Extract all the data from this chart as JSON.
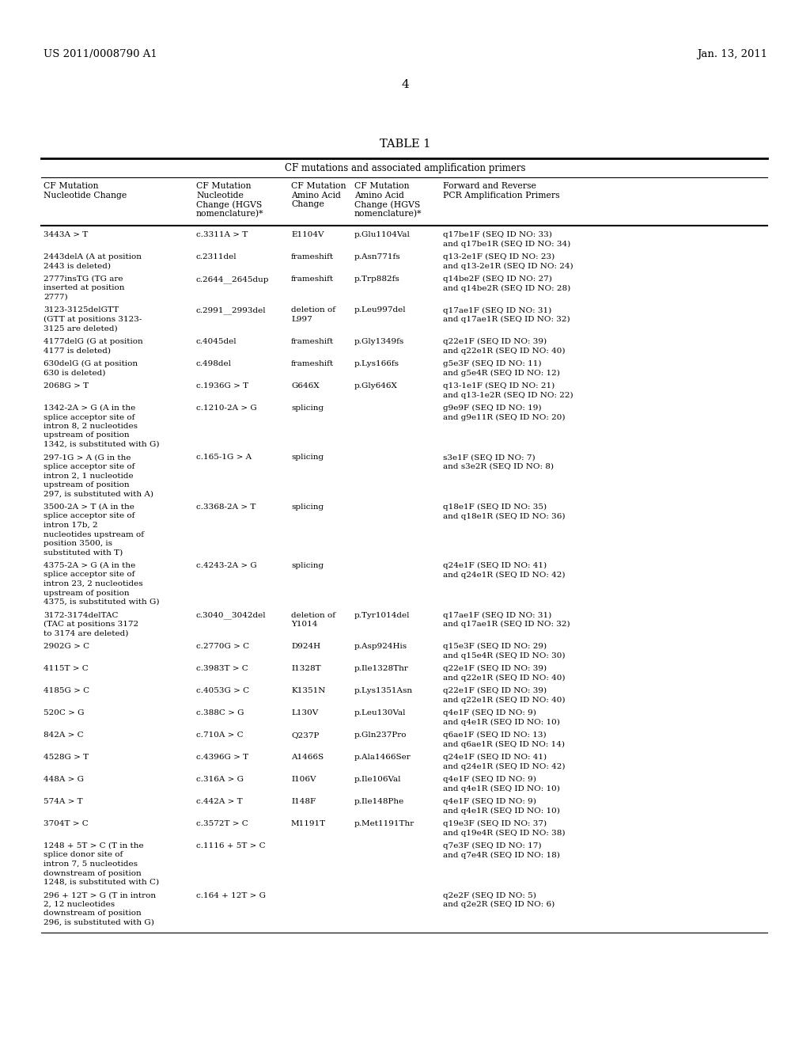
{
  "header_left": "US 2011/0008790 A1",
  "header_right": "Jan. 13, 2011",
  "page_number": "4",
  "table_title": "TABLE 1",
  "table_subtitle": "CF mutations and associated amplification primers",
  "col_headers": [
    [
      "CF Mutation\nNucleotide Change",
      "CF Mutation\nNucleotide\nChange (HGVS\nnomenclature)*",
      "CF Mutation\nAmino Acid\nChange",
      "CF Mutation\nAmino Acid\nChange (HGVS\nnomenclature)*",
      "Forward and Reverse\nPCR Amplification Primers"
    ]
  ],
  "rows": [
    [
      "3443A > T",
      "c.3311A > T",
      "E1104V",
      "p.Glu1104Val",
      "q17be1F (SEQ ID NO: 33)\nand q17be1R (SEQ ID NO: 34)"
    ],
    [
      "2443delA (A at position\n2443 is deleted)",
      "c.2311del",
      "frameshift",
      "p.Asn771fs",
      "q13-2e1F (SEQ ID NO: 23)\nand q13-2e1R (SEQ ID NO: 24)"
    ],
    [
      "2777insTG (TG are\ninserted at position\n2777)",
      "c.2644__2645dup",
      "frameshift",
      "p.Trp882fs",
      "q14be2F (SEQ ID NO: 27)\nand q14be2R (SEQ ID NO: 28)"
    ],
    [
      "3123-3125delGTT\n(GTT at positions 3123-\n3125 are deleted)",
      "c.2991__2993del",
      "deletion of\nL997",
      "p.Leu997del",
      "q17ae1F (SEQ ID NO: 31)\nand q17ae1R (SEQ ID NO: 32)"
    ],
    [
      "4177delG (G at position\n4177 is deleted)",
      "c.4045del",
      "frameshift",
      "p.Gly1349fs",
      "q22e1F (SEQ ID NO: 39)\nand q22e1R (SEQ ID NO: 40)"
    ],
    [
      "630delG (G at position\n630 is deleted)",
      "c.498del",
      "frameshift",
      "p.Lys166fs",
      "g5e3F (SEQ ID NO: 11)\nand g5e4R (SEQ ID NO: 12)"
    ],
    [
      "2068G > T",
      "c.1936G > T",
      "G646X",
      "p.Gly646X",
      "q13-1e1F (SEQ ID NO: 21)\nand q13-1e2R (SEQ ID NO: 22)"
    ],
    [
      "1342-2A > G (A in the\nsplice acceptor site of\nintron 8, 2 nucleotides\nupstream of position\n1342, is substituted with G)",
      "c.1210-2A > G",
      "splicing",
      "",
      "g9e9F (SEQ ID NO: 19)\nand g9e11R (SEQ ID NO: 20)"
    ],
    [
      "297-1G > A (G in the\nsplice acceptor site of\nintron 2, 1 nucleotide\nupstream of position\n297, is substituted with A)",
      "c.165-1G > A",
      "splicing",
      "",
      "s3e1F (SEQ ID NO: 7)\nand s3e2R (SEQ ID NO: 8)"
    ],
    [
      "3500-2A > T (A in the\nsplice acceptor site of\nintron 17b, 2\nnucleotides upstream of\nposition 3500, is\nsubstituted with T)",
      "c.3368-2A > T",
      "splicing",
      "",
      "q18e1F (SEQ ID NO: 35)\nand q18e1R (SEQ ID NO: 36)"
    ],
    [
      "4375-2A > G (A in the\nsplice acceptor site of\nintron 23, 2 nucleotides\nupstream of position\n4375, is substituted with G)",
      "c.4243-2A > G",
      "splicing",
      "",
      "q24e1F (SEQ ID NO: 41)\nand q24e1R (SEQ ID NO: 42)"
    ],
    [
      "3172-3174delTAC\n(TAC at positions 3172\nto 3174 are deleted)",
      "c.3040__3042del",
      "deletion of\nY1014",
      "p.Tyr1014del",
      "q17ae1F (SEQ ID NO: 31)\nand q17ae1R (SEQ ID NO: 32)"
    ],
    [
      "2902G > C",
      "c.2770G > C",
      "D924H",
      "p.Asp924His",
      "q15e3F (SEQ ID NO: 29)\nand q15e4R (SEQ ID NO: 30)"
    ],
    [
      "4115T > C",
      "c.3983T > C",
      "I1328T",
      "p.Ile1328Thr",
      "q22e1F (SEQ ID NO: 39)\nand q22e1R (SEQ ID NO: 40)"
    ],
    [
      "4185G > C",
      "c.4053G > C",
      "K1351N",
      "p.Lys1351Asn",
      "q22e1F (SEQ ID NO: 39)\nand q22e1R (SEQ ID NO: 40)"
    ],
    [
      "520C > G",
      "c.388C > G",
      "L130V",
      "p.Leu130Val",
      "q4e1F (SEQ ID NO: 9)\nand q4e1R (SEQ ID NO: 10)"
    ],
    [
      "842A > C",
      "c.710A > C",
      "Q237P",
      "p.Gln237Pro",
      "q6ae1F (SEQ ID NO: 13)\nand q6ae1R (SEQ ID NO: 14)"
    ],
    [
      "4528G > T",
      "c.4396G > T",
      "A1466S",
      "p.Ala1466Ser",
      "q24e1F (SEQ ID NO: 41)\nand q24e1R (SEQ ID NO: 42)"
    ],
    [
      "448A > G",
      "c.316A > G",
      "I106V",
      "p.Ile106Val",
      "q4e1F (SEQ ID NO: 9)\nand q4e1R (SEQ ID NO: 10)"
    ],
    [
      "574A > T",
      "c.442A > T",
      "I148F",
      "p.Ile148Phe",
      "q4e1F (SEQ ID NO: 9)\nand q4e1R (SEQ ID NO: 10)"
    ],
    [
      "3704T > C",
      "c.3572T > C",
      "M1191T",
      "p.Met1191Thr",
      "q19e3F (SEQ ID NO: 37)\nand q19e4R (SEQ ID NO: 38)"
    ],
    [
      "1248 + 5T > C (T in the\nsplice donor site of\nintron 7, 5 nucleotides\ndownstream of position\n1248, is substituted with C)",
      "c.1116 + 5T > C",
      "",
      "",
      "q7e3F (SEQ ID NO: 17)\nand q7e4R (SEQ ID NO: 18)"
    ],
    [
      "296 + 12T > G (T in intron\n2, 12 nucleotides\ndownstream of position\n296, is substituted with G)",
      "c.164 + 12T > G",
      "",
      "",
      "q2e2F (SEQ ID NO: 5)\nand q2e2R (SEQ ID NO: 6)"
    ]
  ],
  "background_color": "#ffffff",
  "text_color": "#000000"
}
